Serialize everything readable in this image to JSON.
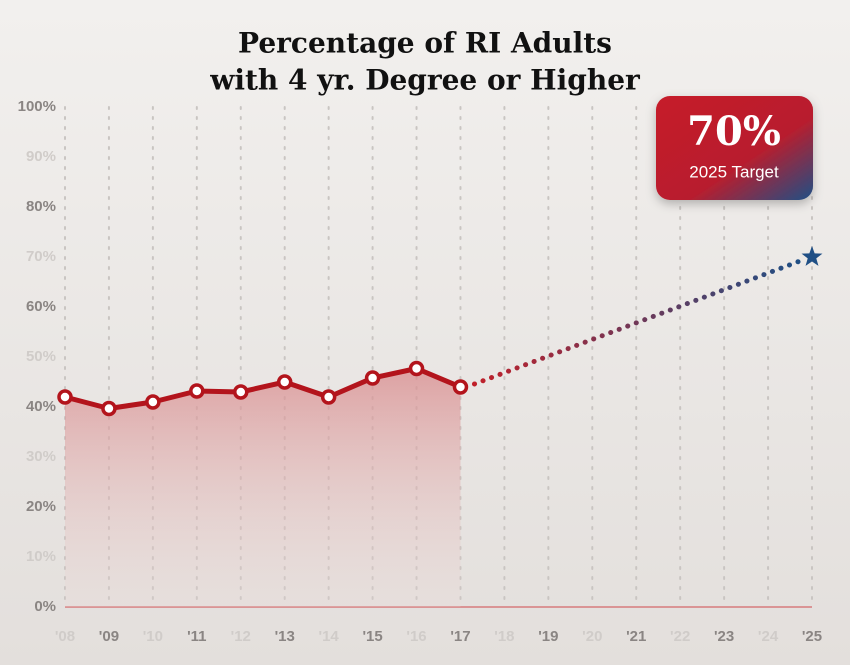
{
  "chart_data": {
    "type": "line",
    "title": [
      "Percentage of RI Adults",
      "with 4 yr. Degree or Higher"
    ],
    "categories": [
      "'08",
      "'09",
      "'10",
      "'11",
      "'12",
      "'13",
      "'14",
      "'15",
      "'16",
      "'17",
      "'18",
      "'19",
      "'20",
      "'21",
      "'22",
      "'23",
      "'24",
      "'25"
    ],
    "values": [
      42,
      39.7,
      41,
      43.2,
      43,
      45,
      42,
      45.8,
      47.7,
      44,
      null,
      null,
      null,
      null,
      null,
      null,
      null,
      null
    ],
    "color": "#b3141c",
    "target": {
      "value": 70,
      "label": "70%",
      "caption": "2025 Target",
      "color": "#1f4f85"
    },
    "ylim": [
      0,
      100
    ],
    "yticks": [
      {
        "value": 0,
        "label": "0%"
      },
      {
        "value": 10,
        "label": "10%"
      },
      {
        "value": 20,
        "label": "20%"
      },
      {
        "value": 30,
        "label": "30%"
      },
      {
        "value": 40,
        "label": "40%"
      },
      {
        "value": 50,
        "label": "50%"
      },
      {
        "value": 60,
        "label": "60%"
      },
      {
        "value": 70,
        "label": "70%"
      },
      {
        "value": 80,
        "label": "80%"
      },
      {
        "value": 90,
        "label": "90%"
      },
      {
        "value": 100,
        "label": "100%"
      }
    ],
    "grid": true
  }
}
